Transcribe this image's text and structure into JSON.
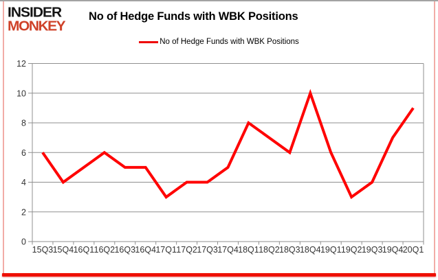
{
  "logo": {
    "line1": "INSIDER",
    "line2": "MONKEY"
  },
  "title": "No of Hedge Funds with WBK Positions",
  "legend": {
    "label": "No of Hedge Funds with WBK Positions"
  },
  "colors": {
    "line": "#ff0000",
    "legend_swatch": "#ee0000",
    "grid": "#8f8f8f",
    "axis": "#8f8f8f",
    "tick_label": "#333333",
    "logo_red": "#cf4229",
    "frame_pink": "#f2aca7",
    "frame_bottom_red": "#ee0f00",
    "frame_top_gray": "#a3a3a3"
  },
  "chart_data": {
    "type": "line",
    "title": "No of Hedge Funds with WBK Positions",
    "categories": [
      "15Q3",
      "15Q4",
      "16Q1",
      "16Q2",
      "16Q3",
      "16Q4",
      "17Q1",
      "17Q2",
      "17Q3",
      "17Q4",
      "18Q1",
      "18Q2",
      "18Q3",
      "18Q4",
      "19Q1",
      "19Q2",
      "19Q3",
      "19Q4",
      "20Q1"
    ],
    "series": [
      {
        "name": "No of Hedge Funds with WBK Positions",
        "color": "#ff0000",
        "values": [
          6,
          4,
          5,
          6,
          5,
          5,
          3,
          4,
          4,
          5,
          8,
          7,
          6,
          10,
          6,
          3,
          4,
          7,
          9
        ]
      }
    ],
    "xlabel": "",
    "ylabel": "",
    "ylim": [
      0,
      12
    ],
    "ytick_step": 2,
    "yticks": [
      0,
      2,
      4,
      6,
      8,
      10,
      12
    ],
    "grid": true,
    "legend_position": "top-center"
  }
}
